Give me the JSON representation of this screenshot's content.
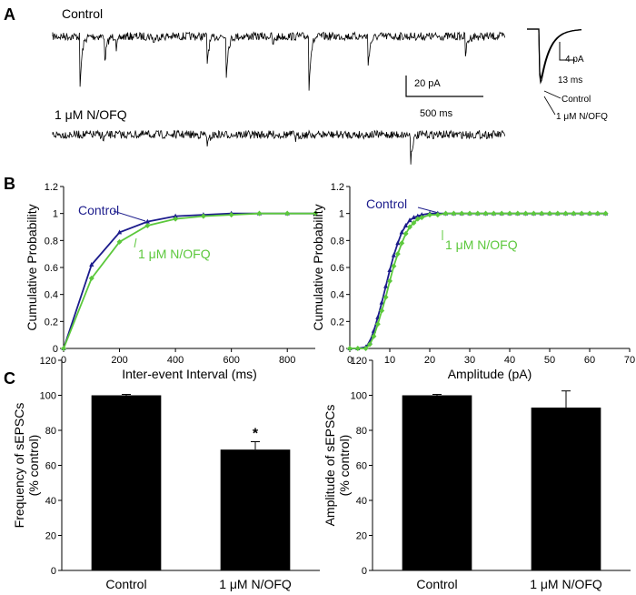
{
  "panels": {
    "a": "A",
    "b": "B",
    "c": "C"
  },
  "traces": {
    "control_label": "Control",
    "drug_label": "1 μM N/OFQ",
    "scale_pa": "20 pA",
    "scale_ms": "500 ms",
    "inset_pa": "4 pA",
    "inset_ms": "13 ms",
    "inset_control": "Control",
    "inset_drug": "1 μM N/OFQ",
    "colors": {
      "trace": "#000000"
    }
  },
  "chart_data": [
    {
      "type": "line",
      "panel": "B",
      "xlabel": "Inter-event Interval (ms)",
      "ylabel": "Cumulative Probability",
      "xlim": [
        0,
        900
      ],
      "ylim": [
        0,
        1.2
      ],
      "xticks": [
        0,
        200,
        400,
        600,
        800
      ],
      "yticks": [
        0,
        0.2,
        0.4,
        0.6,
        0.8,
        1,
        1.2
      ],
      "series": [
        {
          "name": "Control",
          "color": "#1c1c8c",
          "marker": "triangle",
          "x": [
            0,
            100,
            200,
            300,
            400,
            500,
            600,
            700,
            800,
            900
          ],
          "y": [
            0,
            0.62,
            0.86,
            0.94,
            0.98,
            0.99,
            1,
            1,
            1,
            1
          ]
        },
        {
          "name": "1 μM N/OFQ",
          "color": "#5cc83c",
          "marker": "diamond",
          "x": [
            0,
            100,
            200,
            300,
            400,
            500,
            600,
            700,
            800,
            900
          ],
          "y": [
            0,
            0.52,
            0.79,
            0.91,
            0.96,
            0.98,
            0.99,
            1,
            1,
            1
          ]
        }
      ]
    },
    {
      "type": "line",
      "panel": "B",
      "xlabel": "Amplitude (pA)",
      "ylabel": "Cumulative Probability",
      "xlim": [
        0,
        70
      ],
      "ylim": [
        0,
        1.2
      ],
      "xticks": [
        0,
        10,
        20,
        30,
        40,
        50,
        60,
        70
      ],
      "yticks": [
        0,
        0.2,
        0.4,
        0.6,
        0.8,
        1,
        1.2
      ],
      "series": [
        {
          "name": "Control",
          "color": "#1c1c8c",
          "marker": "triangle",
          "x": [
            0,
            2,
            4,
            5,
            6,
            7,
            8,
            9,
            10,
            11,
            12,
            13,
            14,
            15,
            16,
            17,
            18,
            20,
            22,
            24,
            26,
            28,
            30,
            32,
            34,
            36,
            38,
            40,
            42,
            44,
            46,
            48,
            50,
            52,
            54,
            56,
            58,
            60,
            62,
            64
          ],
          "y": [
            0,
            0,
            0.01,
            0.05,
            0.13,
            0.23,
            0.34,
            0.46,
            0.58,
            0.69,
            0.78,
            0.86,
            0.91,
            0.95,
            0.97,
            0.98,
            0.99,
            1,
            1,
            1,
            1,
            1,
            1,
            1,
            1,
            1,
            1,
            1,
            1,
            1,
            1,
            1,
            1,
            1,
            1,
            1,
            1,
            1,
            1,
            1
          ]
        },
        {
          "name": "1 μM N/OFQ",
          "color": "#5cc83c",
          "marker": "diamond",
          "x": [
            0,
            2,
            4,
            5,
            6,
            7,
            8,
            9,
            10,
            11,
            12,
            13,
            14,
            15,
            16,
            17,
            18,
            20,
            22,
            24,
            26,
            28,
            30,
            32,
            34,
            36,
            38,
            40,
            42,
            44,
            46,
            48,
            50,
            52,
            54,
            56,
            58,
            60,
            62,
            64
          ],
          "y": [
            0,
            0,
            0,
            0.03,
            0.09,
            0.18,
            0.28,
            0.38,
            0.5,
            0.61,
            0.7,
            0.78,
            0.85,
            0.9,
            0.93,
            0.96,
            0.97,
            0.99,
            0.99,
            1,
            1,
            1,
            1,
            1,
            1,
            1,
            1,
            1,
            1,
            1,
            1,
            1,
            1,
            1,
            1,
            1,
            1,
            1,
            1,
            1
          ]
        }
      ]
    },
    {
      "type": "bar",
      "panel": "C",
      "categories": [
        "Control",
        "1 μM N/OFQ"
      ],
      "values": [
        100,
        69
      ],
      "errors": [
        0.5,
        4.5
      ],
      "significance": [
        "",
        "*"
      ],
      "ylabel_lines": [
        "Frequency of sEPSCs",
        "(% control)"
      ],
      "ylim": [
        0,
        120
      ],
      "yticks": [
        0,
        20,
        40,
        60,
        80,
        100,
        120
      ],
      "color": "#000000"
    },
    {
      "type": "bar",
      "panel": "C",
      "categories": [
        "Control",
        "1 μM N/OFQ"
      ],
      "values": [
        100,
        93
      ],
      "errors": [
        0.5,
        9.5
      ],
      "significance": [
        "",
        ""
      ],
      "ylabel_lines": [
        "Amplitude of sEPSCs",
        "(% control)"
      ],
      "ylim": [
        0,
        120
      ],
      "yticks": [
        0,
        20,
        40,
        60,
        80,
        100,
        120
      ],
      "color": "#000000"
    }
  ]
}
